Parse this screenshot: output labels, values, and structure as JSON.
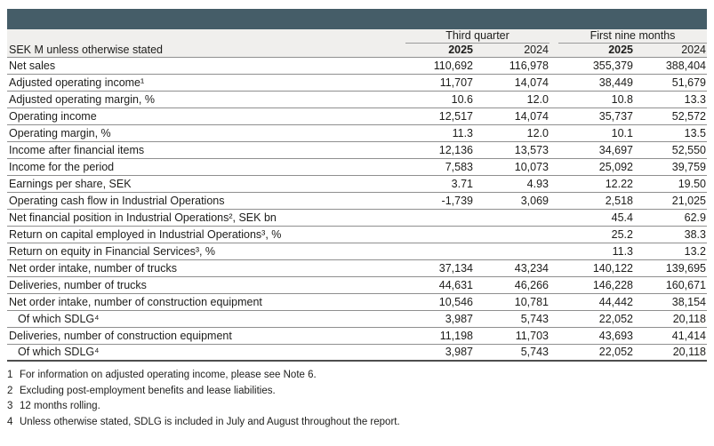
{
  "colors": {
    "header_bar": "#455d68",
    "header_background": "#f0efed",
    "row_divider": "#8f8f8f",
    "table_bottom_border": "#4d4d4d",
    "text": "#1d1d1b"
  },
  "table": {
    "unit_label": "SEK M unless otherwise stated",
    "column_groups": [
      "Third quarter",
      "First nine months"
    ],
    "year_headers": [
      "2025",
      "2024",
      "2025",
      "2024"
    ],
    "rows": [
      {
        "label": "Net sales",
        "indent": false,
        "values": [
          "110,692",
          "116,978",
          "355,379",
          "388,404"
        ]
      },
      {
        "label": "Adjusted operating income¹",
        "indent": false,
        "values": [
          "11,707",
          "14,074",
          "38,449",
          "51,679"
        ]
      },
      {
        "label": "Adjusted operating margin, %",
        "indent": false,
        "values": [
          "10.6",
          "12.0",
          "10.8",
          "13.3"
        ]
      },
      {
        "label": "Operating income",
        "indent": false,
        "values": [
          "12,517",
          "14,074",
          "35,737",
          "52,572"
        ]
      },
      {
        "label": "Operating margin, %",
        "indent": false,
        "values": [
          "11.3",
          "12.0",
          "10.1",
          "13.5"
        ]
      },
      {
        "label": "Income after financial items",
        "indent": false,
        "values": [
          "12,136",
          "13,573",
          "34,697",
          "52,550"
        ]
      },
      {
        "label": "Income for the period",
        "indent": false,
        "values": [
          "7,583",
          "10,073",
          "25,092",
          "39,759"
        ]
      },
      {
        "label": "Earnings per share, SEK",
        "indent": false,
        "values": [
          "3.71",
          "4.93",
          "12.22",
          "19.50"
        ]
      },
      {
        "label": "Operating cash flow in Industrial Operations",
        "indent": false,
        "values": [
          "-1,739",
          "3,069",
          "2,518",
          "21,025"
        ]
      },
      {
        "label": "Net financial position in Industrial Operations², SEK bn",
        "indent": false,
        "values": [
          "",
          "",
          "45.4",
          "62.9"
        ]
      },
      {
        "label": "Return on capital employed in Industrial Operations³, %",
        "indent": false,
        "values": [
          "",
          "",
          "25.2",
          "38.3"
        ]
      },
      {
        "label": "Return on equity in Financial Services³, %",
        "indent": false,
        "values": [
          "",
          "",
          "11.3",
          "13.2"
        ]
      },
      {
        "label": "Net order intake, number of trucks",
        "indent": false,
        "values": [
          "37,134",
          "43,234",
          "140,122",
          "139,695"
        ]
      },
      {
        "label": "Deliveries, number of trucks",
        "indent": false,
        "values": [
          "44,631",
          "46,266",
          "146,228",
          "160,671"
        ]
      },
      {
        "label": "Net order intake, number of construction equipment",
        "indent": false,
        "values": [
          "10,546",
          "10,781",
          "44,442",
          "38,154"
        ]
      },
      {
        "label": "Of which SDLG⁴",
        "indent": true,
        "values": [
          "3,987",
          "5,743",
          "22,052",
          "20,118"
        ]
      },
      {
        "label": "Deliveries, number of construction equipment",
        "indent": false,
        "values": [
          "11,198",
          "11,703",
          "43,693",
          "41,414"
        ]
      },
      {
        "label": "Of which SDLG⁴",
        "indent": true,
        "values": [
          "3,987",
          "5,743",
          "22,052",
          "20,118"
        ]
      }
    ]
  },
  "footnotes": [
    {
      "num": "1",
      "text": "For information on adjusted operating income, please see Note 6."
    },
    {
      "num": "2",
      "text": "Excluding post-employment benefits and lease liabilities."
    },
    {
      "num": "3",
      "text": "12 months rolling."
    },
    {
      "num": "4",
      "text": "Unless otherwise stated, SDLG is included in July and August throughout the report."
    }
  ]
}
